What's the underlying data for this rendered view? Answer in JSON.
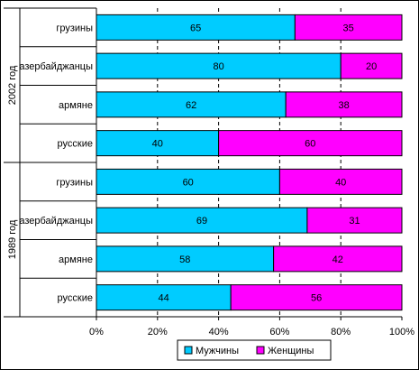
{
  "chart_data": {
    "type": "bar",
    "orientation": "horizontal",
    "stacked": "percent",
    "groups": [
      {
        "name": "2002 год",
        "categories": [
          "грузины",
          "азербайджанцы",
          "армяне",
          "русские"
        ]
      },
      {
        "name": "1989 год",
        "categories": [
          "грузины",
          "азербайджанцы",
          "армяне",
          "русские"
        ]
      }
    ],
    "series": [
      {
        "name": "Мужчины",
        "color": "#00ccff",
        "values": [
          65,
          80,
          62,
          40,
          60,
          69,
          58,
          44
        ]
      },
      {
        "name": "Женщины",
        "color": "#ff00ff",
        "values": [
          35,
          20,
          38,
          60,
          40,
          31,
          42,
          56
        ]
      }
    ],
    "x_ticks": [
      "0%",
      "20%",
      "40%",
      "60%",
      "80%",
      "100%"
    ],
    "xlim": [
      0,
      100
    ],
    "grid": "vertical dashed",
    "legend_position": "bottom"
  }
}
